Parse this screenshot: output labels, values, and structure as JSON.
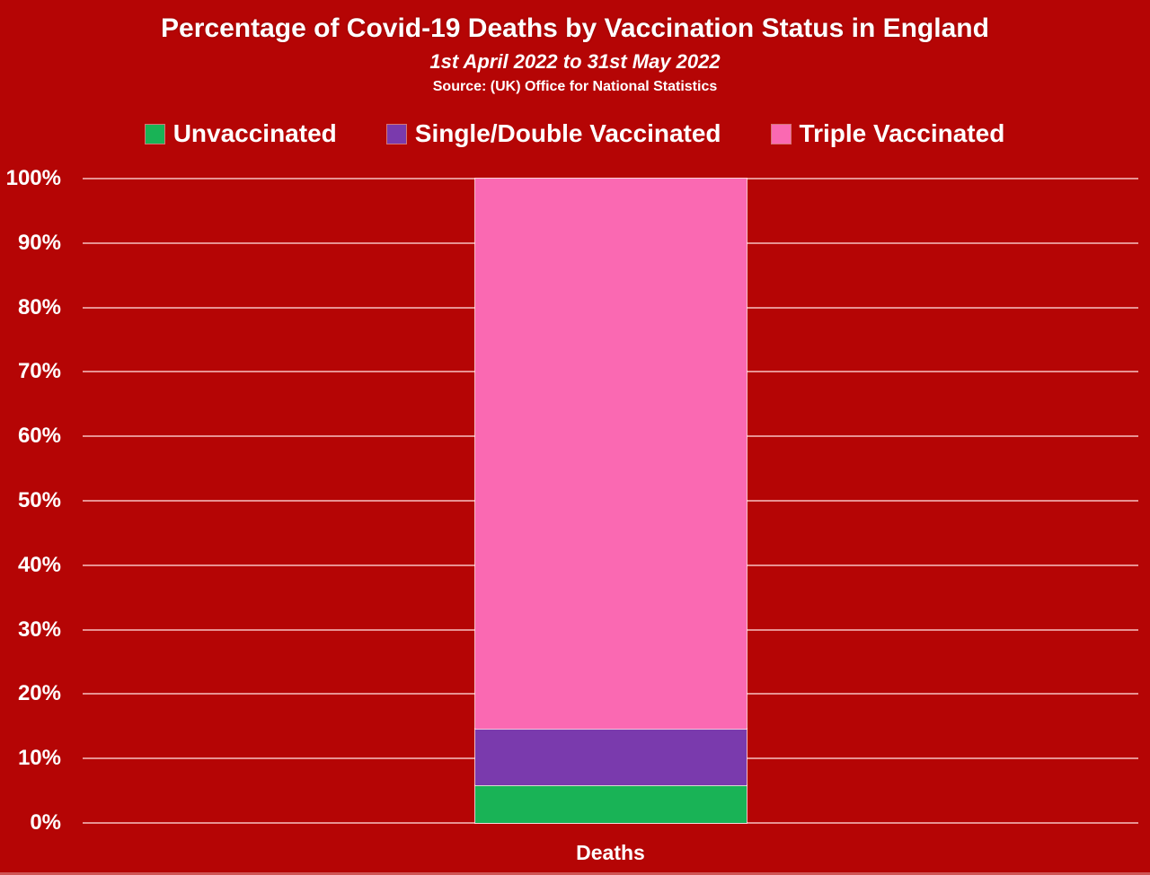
{
  "page": {
    "background_color": "#b50505",
    "text_color": "#ffffff",
    "gridline_color": "#ffd6d6"
  },
  "chart_data": {
    "type": "bar",
    "stacked": true,
    "title": "Percentage of Covid-19 Deaths by Vaccination Status in England",
    "subtitle": "1st April 2022 to 31st May 2022",
    "source": "Source: (UK) Office for National Statistics",
    "categories": [
      "Deaths"
    ],
    "series": [
      {
        "name": "Unvaccinated",
        "values": [
          5.8
        ],
        "color": "#19b356"
      },
      {
        "name": "Single/Double Vaccinated",
        "values": [
          8.8
        ],
        "color": "#7a3aad"
      },
      {
        "name": "Triple Vaccinated",
        "values": [
          85.4
        ],
        "color": "#fa69b2"
      }
    ],
    "xlabel": "",
    "ylabel": "",
    "ylim": [
      0,
      100
    ],
    "yticks": [
      "0%",
      "10%",
      "20%",
      "30%",
      "40%",
      "50%",
      "60%",
      "70%",
      "80%",
      "90%",
      "100%"
    ],
    "grid": true,
    "legend_position": "top"
  }
}
